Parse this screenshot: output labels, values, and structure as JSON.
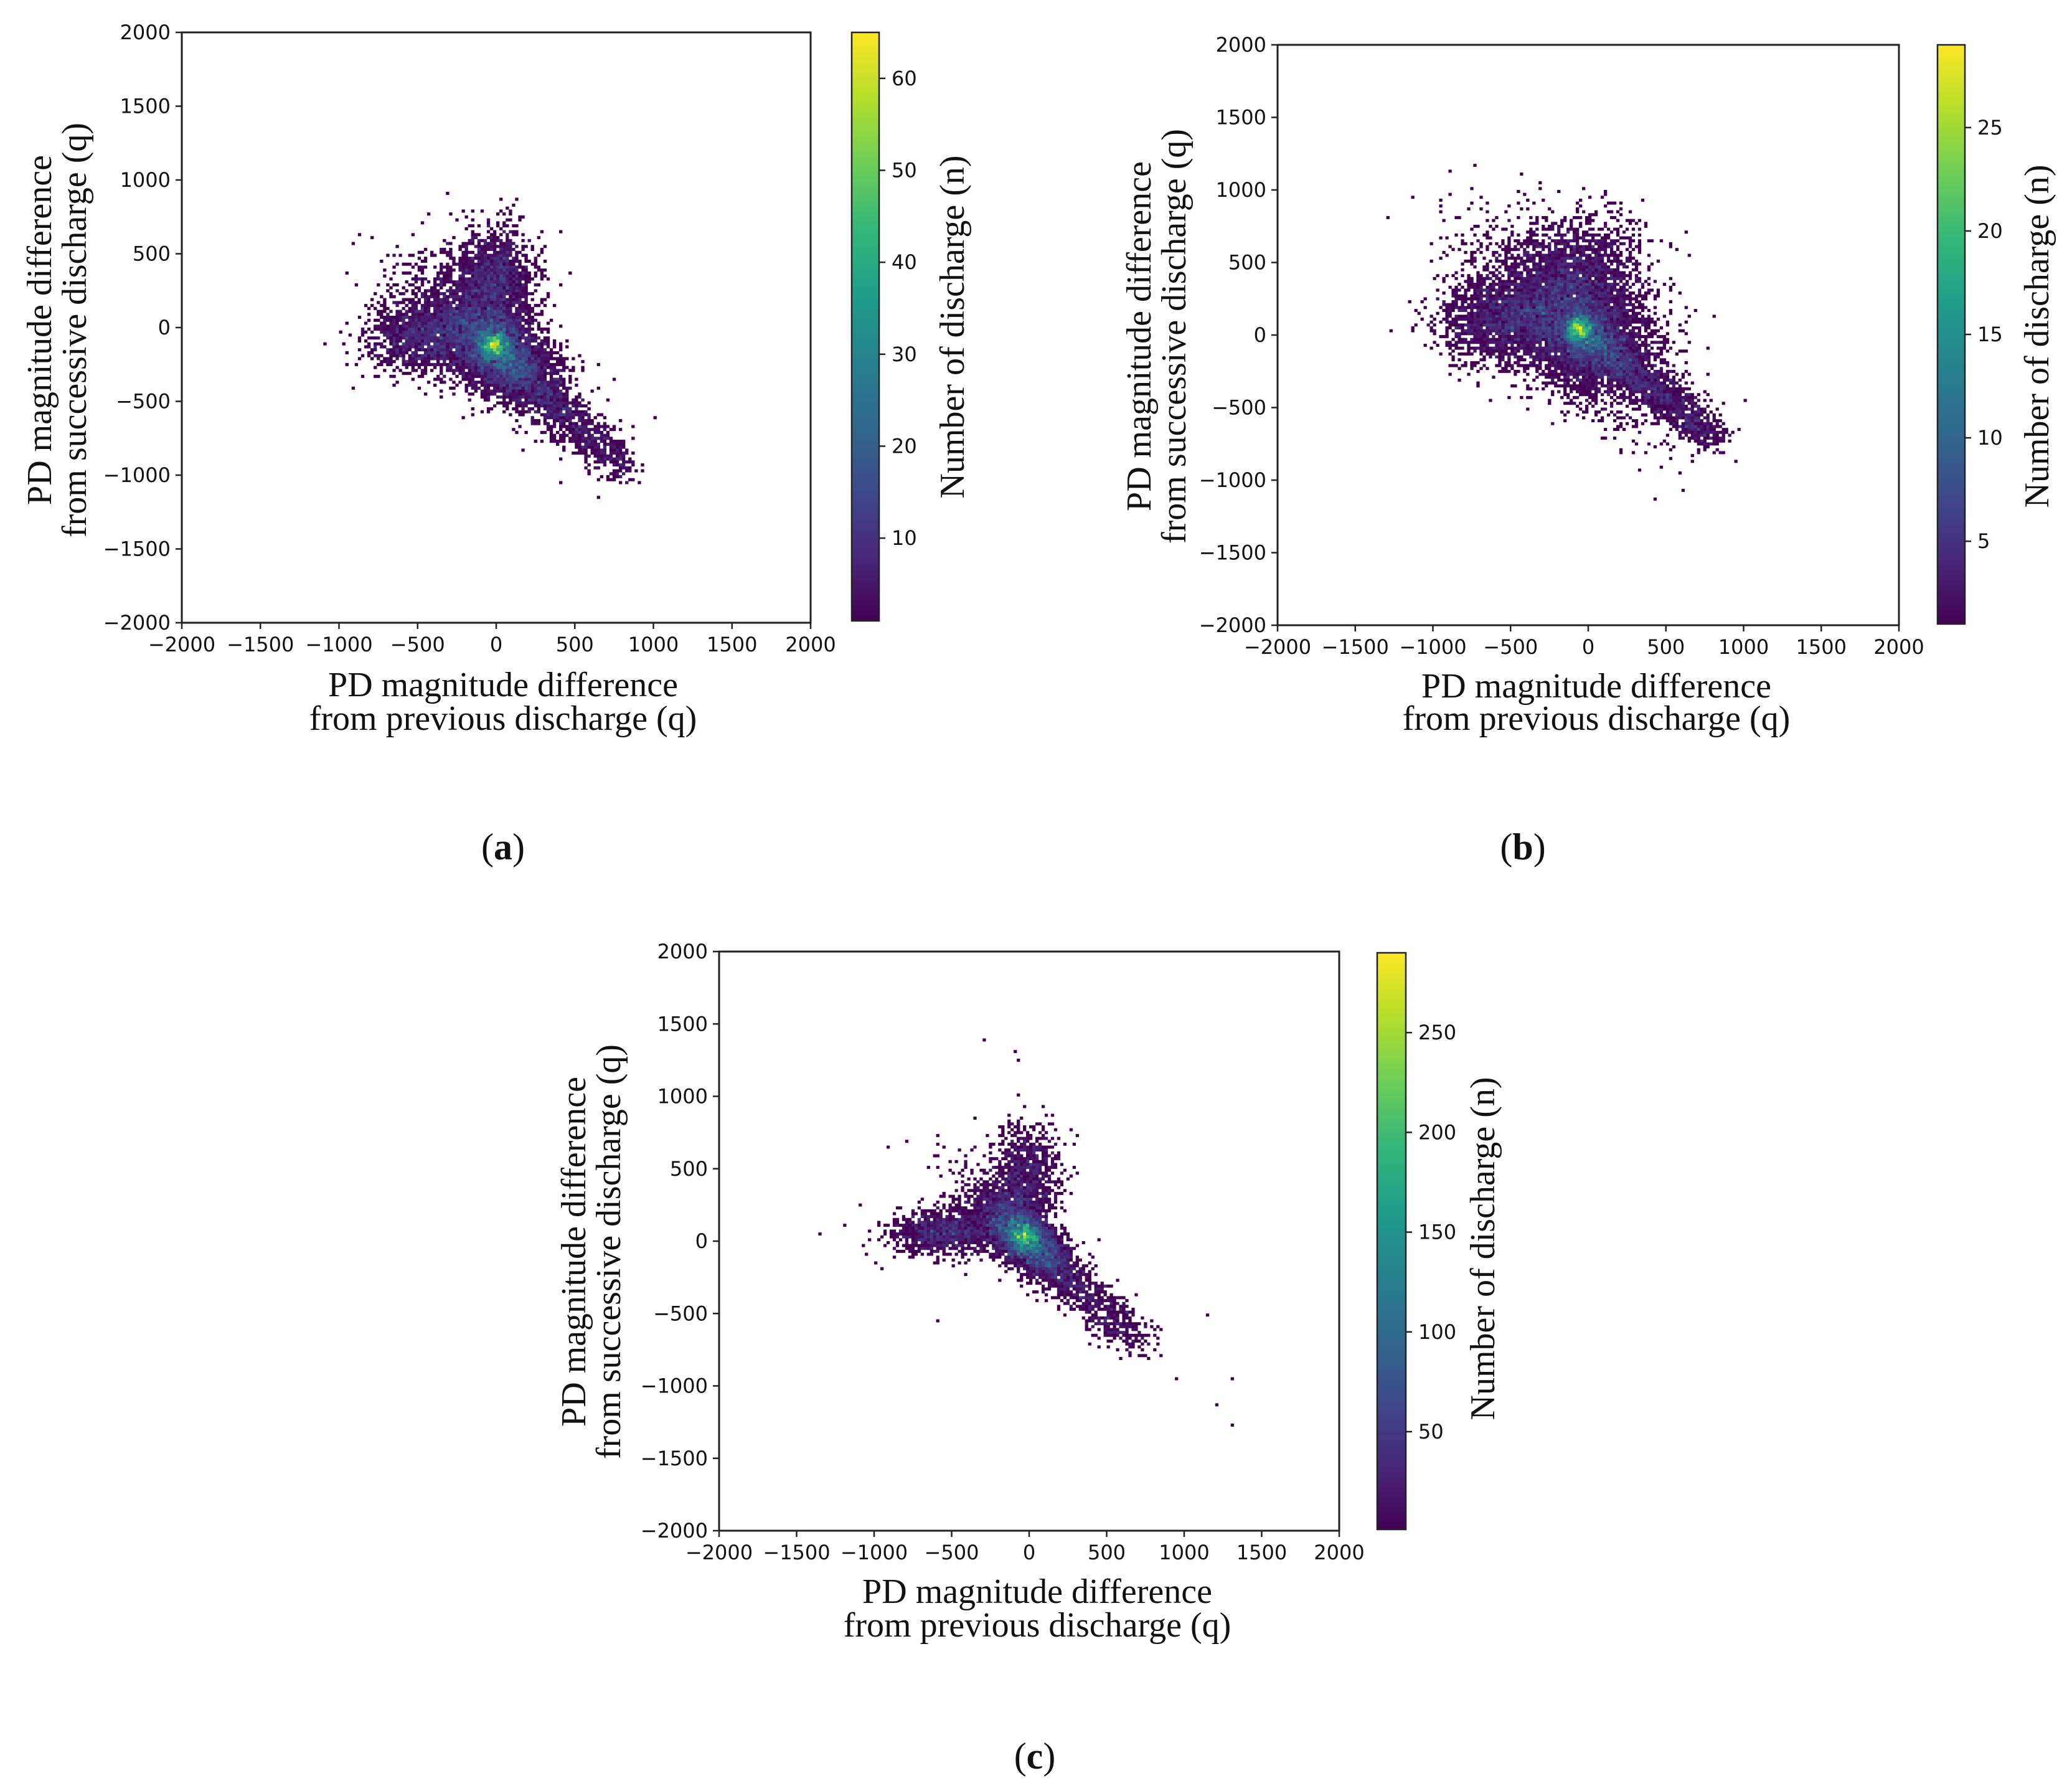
{
  "figure": {
    "panels": [
      "a",
      "b",
      "c"
    ]
  },
  "chart_data": [
    {
      "id": "a",
      "type": "heatmap",
      "panel_label": "(a)",
      "panel_letter": "a",
      "x_label_line1": "PD magnitude difference",
      "x_label_line2": "from previous discharge (q)",
      "y_label_line1": "PD magnitude difference",
      "y_label_line2": "from successive discharge (q)",
      "xlim": [
        -2000,
        2000
      ],
      "ylim": [
        -2000,
        2000
      ],
      "x_ticks": [
        -2000,
        -1500,
        -1000,
        -500,
        0,
        500,
        1000,
        1500,
        2000
      ],
      "y_ticks": [
        -2000,
        -1500,
        -1000,
        -500,
        0,
        500,
        1000,
        1500,
        2000
      ],
      "colorbar": {
        "label": "Number of discharge (n)",
        "min": 1,
        "max": 65,
        "ticks": [
          10,
          20,
          30,
          40,
          50,
          60
        ]
      },
      "distribution": {
        "center": [
          -20,
          -120
        ],
        "peak_count": 65,
        "points": 9000,
        "spread_diag": 360,
        "spread_anti": 190,
        "up_lobe": {
          "x": -20,
          "y": 330,
          "sx": 130,
          "sy": 170
        },
        "left_lobe": {
          "x": -450,
          "y": -60,
          "sx": 180,
          "sy": 120
        },
        "tail_end": [
          800,
          -950
        ],
        "outliers": [
          [
            -960,
            360
          ],
          [
            -980,
            -110
          ],
          [
            870,
            -940
          ],
          [
            400,
            -1060
          ],
          [
            850,
            -1040
          ],
          [
            -470,
            700
          ],
          [
            80,
            790
          ]
        ]
      }
    },
    {
      "id": "b",
      "type": "heatmap",
      "panel_label": "(b)",
      "panel_letter": "b",
      "x_label_line1": "PD magnitude difference",
      "x_label_line2": "from previous discharge (q)",
      "y_label_line1": "PD magnitude difference",
      "y_label_line2": "from successive discharge (q)",
      "xlim": [
        -2000,
        2000
      ],
      "ylim": [
        -2000,
        2000
      ],
      "x_ticks": [
        -2000,
        -1500,
        -1000,
        -500,
        0,
        500,
        1000,
        1500,
        2000
      ],
      "y_ticks": [
        -2000,
        -1500,
        -1000,
        -500,
        0,
        500,
        1000,
        1500,
        2000
      ],
      "colorbar": {
        "label": "Number of discharge (n)",
        "min": 1,
        "max": 29,
        "ticks": [
          5,
          10,
          15,
          20,
          25
        ]
      },
      "distribution": {
        "center": [
          -60,
          40
        ],
        "peak_count": 29,
        "points": 11000,
        "spread_diag": 430,
        "spread_anti": 260,
        "up_lobe": {
          "x": -50,
          "y": 420,
          "sx": 200,
          "sy": 200
        },
        "left_lobe": {
          "x": -550,
          "y": 100,
          "sx": 200,
          "sy": 150
        },
        "tail_end": [
          820,
          -720
        ],
        "outliers": [
          [
            -880,
            400
          ],
          [
            -920,
            100
          ],
          [
            860,
            -820
          ],
          [
            -650,
            850
          ],
          [
            0,
            940
          ],
          [
            470,
            640
          ]
        ]
      }
    },
    {
      "id": "c",
      "type": "heatmap",
      "panel_label": "(c)",
      "panel_letter": "c",
      "x_label_line1": "PD magnitude difference",
      "x_label_line2": "from previous discharge (q)",
      "y_label_line1": "PD magnitude difference",
      "y_label_line2": "from successive discharge (q)",
      "xlim": [
        -2000,
        2000
      ],
      "ylim": [
        -2000,
        2000
      ],
      "x_ticks": [
        -2000,
        -1500,
        -1000,
        -500,
        0,
        500,
        1000,
        1500,
        2000
      ],
      "y_ticks": [
        -2000,
        -1500,
        -1000,
        -500,
        0,
        500,
        1000,
        1500,
        2000
      ],
      "colorbar": {
        "label": "Number of discharge (n)",
        "min": 1,
        "max": 290,
        "ticks": [
          50,
          100,
          150,
          200,
          250
        ]
      },
      "distribution": {
        "center": [
          -40,
          40
        ],
        "peak_count": 290,
        "points": 6500,
        "spread_diag": 280,
        "spread_anti": 130,
        "up_lobe": {
          "x": -30,
          "y": 420,
          "sx": 110,
          "sy": 190
        },
        "left_lobe": {
          "x": -550,
          "y": 60,
          "sx": 170,
          "sy": 80
        },
        "tail_end": [
          700,
          -700
        ],
        "outliers": [
          [
            -1350,
            40
          ],
          [
            -1100,
            250
          ],
          [
            -1000,
            -150
          ],
          [
            -950,
            -200
          ],
          [
            -600,
            -550
          ],
          [
            -300,
            1380
          ],
          [
            -100,
            1300
          ],
          [
            -80,
            1250
          ],
          [
            1150,
            -510
          ],
          [
            1300,
            -960
          ],
          [
            1200,
            -1140
          ],
          [
            1300,
            -1270
          ],
          [
            950,
            -950
          ],
          [
            850,
            -800
          ],
          [
            300,
            720
          ]
        ]
      }
    }
  ]
}
